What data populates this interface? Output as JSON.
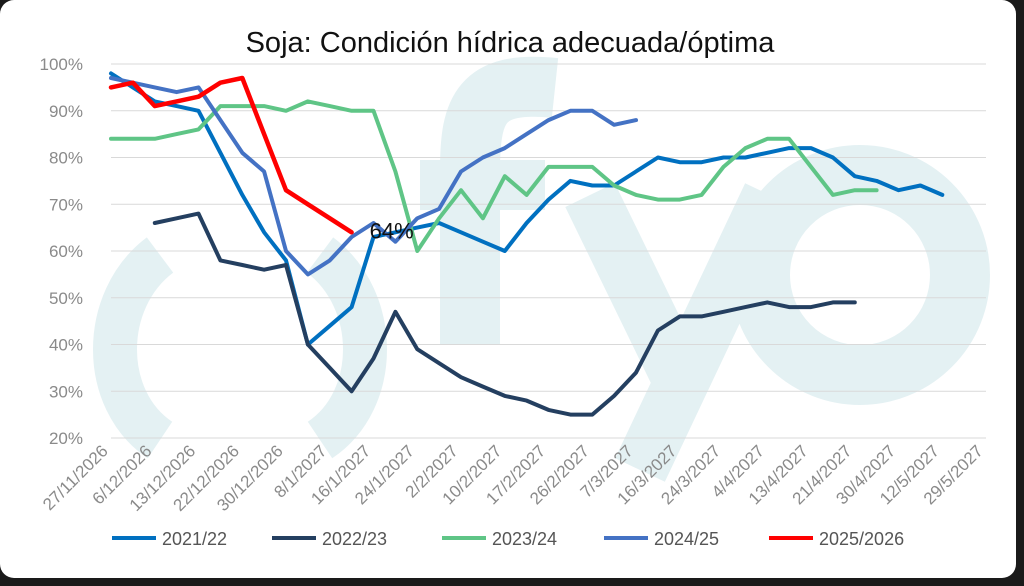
{
  "chart_data": {
    "type": "line",
    "title": "Soja: Condición hídrica adecuada/óptima",
    "watermark": "()fyo",
    "xlabel": "",
    "ylabel": "",
    "ylim": [
      20,
      100
    ],
    "yticks": [
      "20%",
      "30%",
      "40%",
      "50%",
      "60%",
      "70%",
      "80%",
      "90%",
      "100%"
    ],
    "categories": [
      "27/11/2026",
      "6/12/2026",
      "13/12/2026",
      "22/12/2026",
      "30/12/2026",
      "8/1/2027",
      "16/1/2027",
      "24/1/2027",
      "2/2/2027",
      "10/2/2027",
      "17/2/2027",
      "26/2/2027",
      "7/3/2027",
      "16/3/2027",
      "24/3/2027",
      "4/4/2027",
      "13/4/2027",
      "21/4/2027",
      "30/4/2027",
      "12/5/2027",
      "29/5/2027"
    ],
    "x_positions": [
      0,
      1,
      2,
      3,
      4,
      5,
      6,
      7,
      8,
      9,
      10,
      11,
      12,
      13,
      14,
      15,
      16,
      17,
      18,
      19,
      20
    ],
    "legend_position": "bottom",
    "annotation": {
      "text": "64%",
      "series": "2025/2026"
    },
    "series": [
      {
        "name": "2021/22",
        "color": "#0070c0",
        "x": [
          0,
          0.5,
          1,
          1.5,
          2,
          2.5,
          3,
          3.5,
          4,
          4.5,
          5,
          5.5,
          6,
          6.5,
          7,
          7.5,
          8,
          8.5,
          9,
          9.5,
          10,
          10.5,
          11,
          11.5,
          12,
          12.5,
          13,
          13.5,
          14,
          14.5,
          15,
          15.5,
          16,
          16.5,
          17,
          17.5,
          18,
          18.5,
          19,
          19.5,
          20
        ],
        "values": [
          98,
          95,
          92,
          91,
          90,
          81,
          72,
          64,
          58,
          40,
          44,
          48,
          63,
          64,
          65,
          66,
          64,
          62,
          60,
          66,
          71,
          75,
          74,
          74,
          77,
          80,
          79,
          79,
          80,
          80,
          81,
          82,
          82,
          80,
          76,
          75,
          73,
          74,
          72,
          null,
          null
        ]
      },
      {
        "name": "2022/23",
        "color": "#243f60",
        "x": [
          1,
          1.5,
          2,
          2.5,
          3,
          3.5,
          4,
          4.5,
          5,
          5.5,
          6,
          6.5,
          7,
          7.5,
          8,
          8.5,
          9,
          9.5,
          10,
          10.5,
          11,
          11.5,
          12,
          12.5,
          13,
          13.5,
          14,
          14.5,
          15,
          15.5,
          16,
          16.5,
          17
        ],
        "values": [
          66,
          67,
          68,
          58,
          57,
          56,
          57,
          40,
          35,
          30,
          37,
          47,
          39,
          36,
          33,
          31,
          29,
          28,
          26,
          25,
          25,
          29,
          34,
          43,
          46,
          46,
          47,
          48,
          49,
          48,
          48,
          49,
          49
        ]
      },
      {
        "name": "2023/24",
        "color": "#5fc586",
        "x": [
          0,
          0.5,
          1,
          1.5,
          2,
          2.5,
          3,
          3.5,
          4,
          4.5,
          5,
          5.5,
          6,
          6.5,
          7,
          7.5,
          8,
          8.5,
          9,
          9.5,
          10,
          10.5,
          11,
          11.5,
          12,
          12.5,
          13,
          13.5,
          14,
          14.5,
          15,
          15.5,
          16,
          16.5,
          17,
          17.5,
          18,
          18.5,
          19,
          19.5,
          20
        ],
        "values": [
          84,
          84,
          84,
          85,
          86,
          91,
          91,
          91,
          90,
          92,
          91,
          90,
          90,
          77,
          60,
          67,
          73,
          67,
          76,
          72,
          78,
          78,
          78,
          74,
          72,
          71,
          71,
          72,
          78,
          82,
          84,
          84,
          78,
          72,
          73,
          73,
          null,
          null,
          null,
          null,
          null
        ]
      },
      {
        "name": "2024/25",
        "color": "#4472c4",
        "x": [
          0,
          0.5,
          1,
          1.5,
          2,
          2.5,
          3,
          3.5,
          4,
          4.5,
          5,
          5.5,
          6,
          6.5,
          7,
          7.5,
          8,
          8.5,
          9,
          9.5,
          10,
          10.5,
          11,
          11.5,
          12,
          12.5,
          13,
          13.5,
          14,
          14.5,
          15,
          15.5,
          16,
          16.5,
          17
        ],
        "values": [
          97,
          96,
          95,
          94,
          95,
          88,
          81,
          77,
          60,
          55,
          58,
          63,
          66,
          62,
          67,
          69,
          77,
          80,
          82,
          85,
          88,
          90,
          90,
          87,
          88,
          null,
          null,
          null,
          null,
          null,
          null,
          null,
          null,
          null,
          null
        ]
      },
      {
        "name": "2025/2026",
        "color": "#ff0000",
        "x": [
          0,
          0.5,
          1,
          1.5,
          2,
          2.5,
          3,
          3.5,
          4,
          4.5,
          5,
          5.5,
          6,
          6.5
        ],
        "values": [
          95,
          96,
          91,
          92,
          93,
          96,
          97,
          85,
          73,
          70,
          67,
          64,
          null,
          null
        ]
      }
    ]
  }
}
